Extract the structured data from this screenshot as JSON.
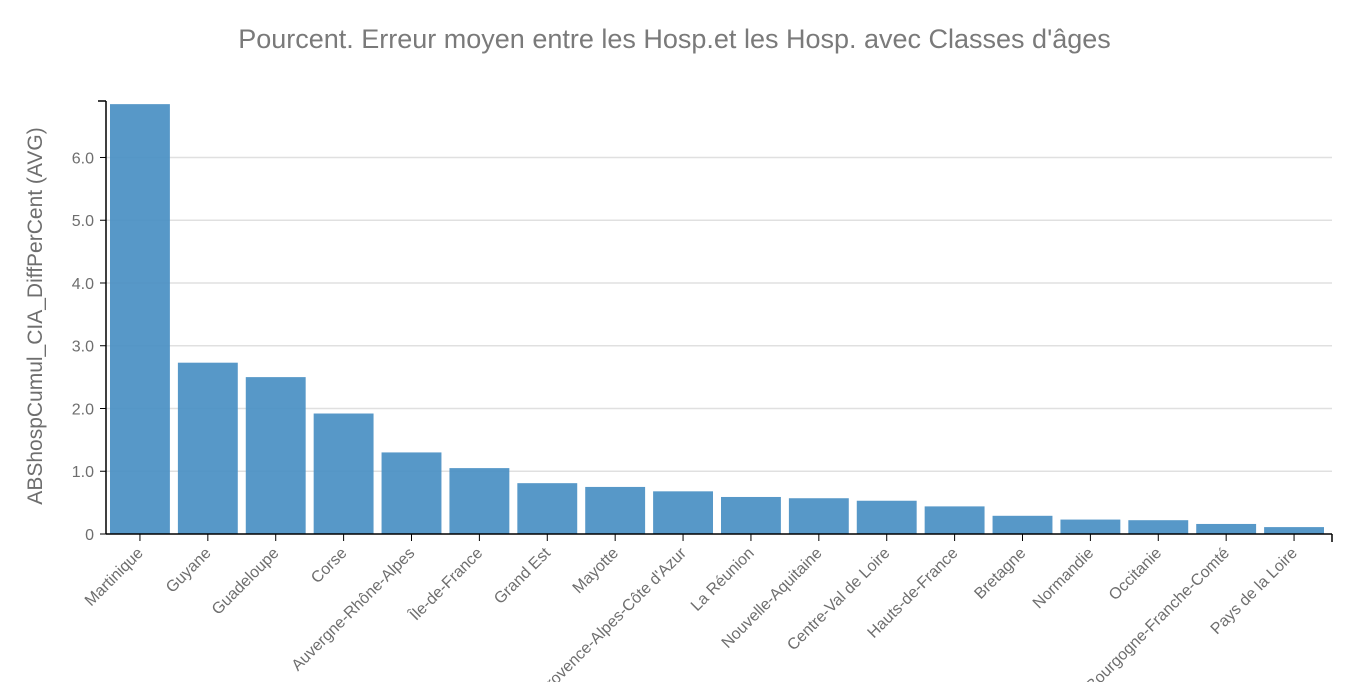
{
  "chart_data": {
    "type": "bar",
    "title": "Pourcent. Erreur moyen entre les Hosp.et les Hosp. avec Classes d'âges",
    "xlabel": "",
    "ylabel": "ABShospCumul_CIA_DiffPerCent (AVG)",
    "ylim": [
      0,
      6.9
    ],
    "yticks": [
      0,
      1.0,
      2.0,
      3.0,
      4.0,
      5.0,
      6.0
    ],
    "ytick_labels": [
      "0",
      "1.0",
      "2.0",
      "3.0",
      "4.0",
      "5.0",
      "6.0"
    ],
    "grid": true,
    "bar_color": "#4a90c4",
    "categories": [
      "Martinique",
      "Guyane",
      "Guadeloupe",
      "Corse",
      "Auvergne-Rhône-Alpes",
      "Île-de-France",
      "Grand Est",
      "Mayotte",
      "Provence-Alpes-Côte d'Azur",
      "La Réunion",
      "Nouvelle-Aquitaine",
      "Centre-Val de Loire",
      "Hauts-de-France",
      "Bretagne",
      "Normandie",
      "Occitanie",
      "Bourgogne-Franche-Comté",
      "Pays de la Loire"
    ],
    "values": [
      6.85,
      2.73,
      2.5,
      1.92,
      1.3,
      1.05,
      0.81,
      0.75,
      0.68,
      0.59,
      0.57,
      0.53,
      0.44,
      0.29,
      0.23,
      0.22,
      0.16,
      0.11
    ]
  }
}
